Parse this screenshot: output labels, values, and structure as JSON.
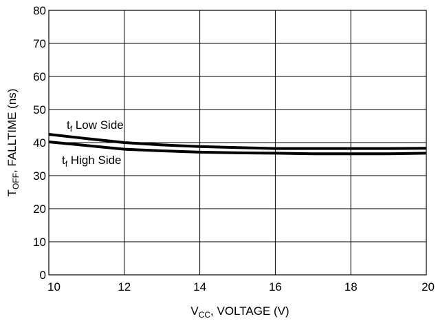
{
  "chart_data": {
    "type": "line",
    "xlabel": {
      "main": "V",
      "sub": "CC",
      "rest": ", VOLTAGE (V)"
    },
    "ylabel": {
      "main": "T",
      "sub": "OFF",
      "rest": ", FALLTIME (ns)"
    },
    "xlim": [
      10,
      20
    ],
    "ylim": [
      0,
      80
    ],
    "xticks": [
      "10",
      "12",
      "14",
      "16",
      "18",
      "20"
    ],
    "yticks": [
      "0",
      "10",
      "20",
      "30",
      "40",
      "50",
      "60",
      "70",
      "80"
    ],
    "grid": true,
    "series": [
      {
        "name": "tf Low Side",
        "x": [
          10,
          11,
          12,
          13,
          14,
          15,
          16,
          17,
          18,
          19,
          20
        ],
        "y": [
          42.5,
          41.2,
          40,
          39.3,
          38.8,
          38.5,
          38.2,
          38.2,
          38.2,
          38.2,
          38.3
        ]
      },
      {
        "name": "tf High Side",
        "x": [
          10,
          11,
          12,
          13,
          14,
          15,
          16,
          17,
          18,
          19,
          20
        ],
        "y": [
          40.2,
          39.1,
          38,
          37.5,
          37.1,
          36.9,
          36.8,
          36.6,
          36.6,
          36.6,
          36.8
        ]
      }
    ],
    "annotations": [
      {
        "main": "t",
        "sub": "f",
        "rest": " Low Side"
      },
      {
        "main": "t",
        "sub": "f",
        "rest": " High Side"
      }
    ]
  }
}
